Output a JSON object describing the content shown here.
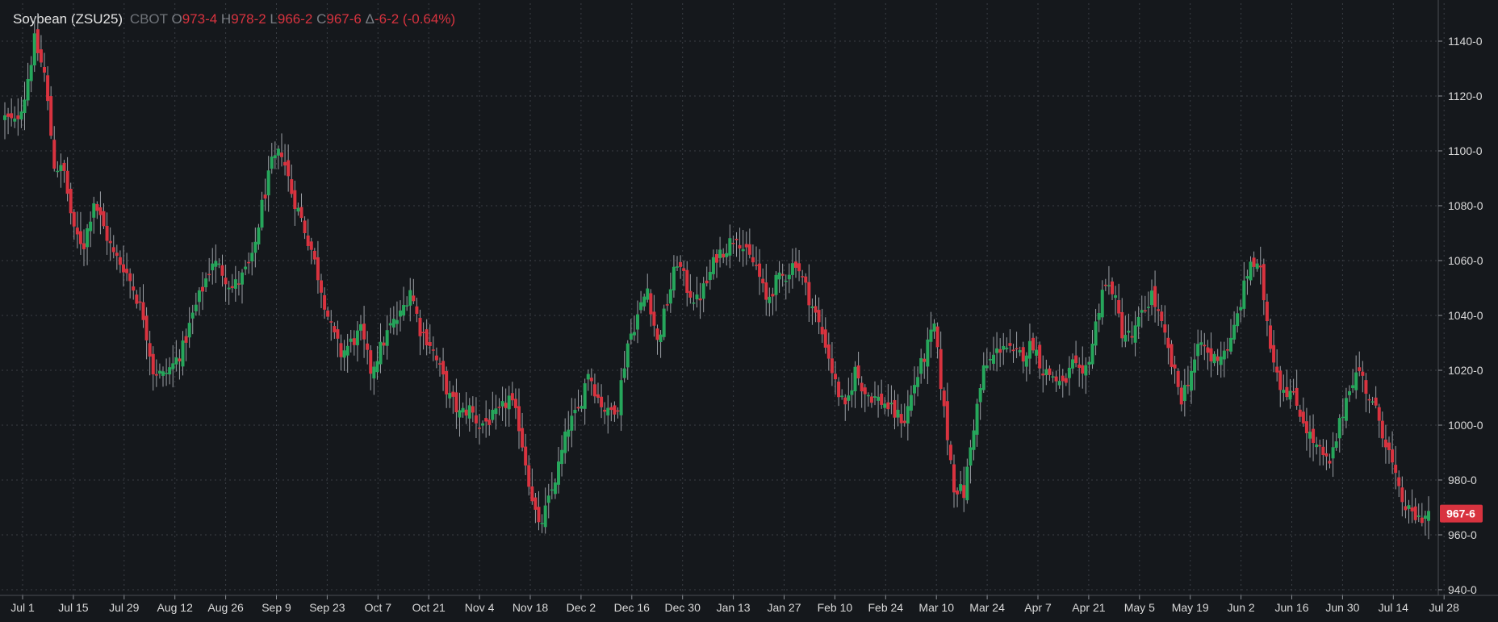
{
  "header": {
    "symbol": "Soybean (ZSU25)",
    "exchange": "CBOT",
    "open_label": "O",
    "open": "973-4",
    "high_label": "H",
    "high": "978-2",
    "low_label": "L",
    "low": "966-2",
    "close_label": "C",
    "close": "967-6",
    "change_label": "Δ",
    "change": "-6-2 (-0.64%)"
  },
  "colors": {
    "background": "#15181c",
    "up": "#26a65b",
    "down": "#d8333f",
    "grid": "#3a3e44",
    "axis_text": "#d9d9d9",
    "price_tag": "#d8333f"
  },
  "last_price_label": "967-6",
  "chart_data": {
    "type": "candlestick",
    "title": "Soybean (ZSU25)",
    "ylim": [
      940,
      1150
    ],
    "y_ticks": [
      940,
      960,
      980,
      1000,
      1020,
      1040,
      1060,
      1080,
      1100,
      1120,
      1140
    ],
    "y_tick_labels": [
      "940-0",
      "960-0",
      "980-0",
      "1000-0",
      "1020-0",
      "1040-0",
      "1060-0",
      "1080-0",
      "1100-0",
      "1120-0",
      "1140-0"
    ],
    "x_tick_labels": [
      "Jul 1",
      "Jul 15",
      "Jul 29",
      "Aug 12",
      "Aug 26",
      "Sep 9",
      "Sep 23",
      "Oct 7",
      "Oct 21",
      "Nov 4",
      "Nov 18",
      "Dec 2",
      "Dec 16",
      "Dec 30",
      "Jan 13",
      "Jan 27",
      "Feb 10",
      "Feb 24",
      "Mar 10",
      "Mar 24",
      "Apr 7",
      "Apr 21",
      "May 5",
      "May 19",
      "Jun 2",
      "Jun 16",
      "Jun 30",
      "Jul 14",
      "Jul 28"
    ],
    "grid": true,
    "close_path": [
      [
        0,
        1112
      ],
      [
        3,
        1110
      ],
      [
        6,
        1120
      ],
      [
        9,
        1140
      ],
      [
        12,
        1128
      ],
      [
        15,
        1095
      ],
      [
        18,
        1092
      ],
      [
        21,
        1070
      ],
      [
        24,
        1066
      ],
      [
        27,
        1082
      ],
      [
        30,
        1072
      ],
      [
        33,
        1062
      ],
      [
        36,
        1058
      ],
      [
        39,
        1050
      ],
      [
        42,
        1040
      ],
      [
        45,
        1020
      ],
      [
        48,
        1018
      ],
      [
        51,
        1022
      ],
      [
        54,
        1028
      ],
      [
        57,
        1040
      ],
      [
        60,
        1050
      ],
      [
        63,
        1060
      ],
      [
        66,
        1056
      ],
      [
        69,
        1050
      ],
      [
        72,
        1054
      ],
      [
        75,
        1060
      ],
      [
        78,
        1080
      ],
      [
        81,
        1095
      ],
      [
        84,
        1100
      ],
      [
        87,
        1085
      ],
      [
        90,
        1075
      ],
      [
        93,
        1064
      ],
      [
        96,
        1050
      ],
      [
        99,
        1035
      ],
      [
        102,
        1026
      ],
      [
        105,
        1030
      ],
      [
        108,
        1034
      ],
      [
        111,
        1020
      ],
      [
        114,
        1028
      ],
      [
        117,
        1036
      ],
      [
        120,
        1040
      ],
      [
        123,
        1050
      ],
      [
        126,
        1035
      ],
      [
        129,
        1030
      ],
      [
        132,
        1020
      ],
      [
        135,
        1010
      ],
      [
        138,
        1004
      ],
      [
        141,
        1006
      ],
      [
        144,
        1000
      ],
      [
        147,
        1002
      ],
      [
        150,
        1004
      ],
      [
        153,
        1010
      ],
      [
        156,
        1000
      ],
      [
        159,
        980
      ],
      [
        162,
        962
      ],
      [
        165,
        972
      ],
      [
        168,
        985
      ],
      [
        171,
        1000
      ],
      [
        174,
        1005
      ],
      [
        177,
        1020
      ],
      [
        180,
        1010
      ],
      [
        183,
        1004
      ],
      [
        186,
        1008
      ],
      [
        189,
        1030
      ],
      [
        192,
        1040
      ],
      [
        195,
        1050
      ],
      [
        198,
        1030
      ],
      [
        201,
        1045
      ],
      [
        204,
        1060
      ],
      [
        207,
        1050
      ],
      [
        210,
        1045
      ],
      [
        213,
        1052
      ],
      [
        216,
        1062
      ],
      [
        219,
        1065
      ],
      [
        222,
        1070
      ],
      [
        225,
        1062
      ],
      [
        228,
        1058
      ],
      [
        231,
        1045
      ],
      [
        234,
        1052
      ],
      [
        237,
        1055
      ],
      [
        240,
        1060
      ],
      [
        243,
        1050
      ],
      [
        246,
        1040
      ],
      [
        249,
        1030
      ],
      [
        252,
        1015
      ],
      [
        255,
        1005
      ],
      [
        258,
        1020
      ],
      [
        261,
        1012
      ],
      [
        264,
        1010
      ],
      [
        267,
        1008
      ],
      [
        270,
        1004
      ],
      [
        273,
        1002
      ],
      [
        276,
        1015
      ],
      [
        279,
        1025
      ],
      [
        282,
        1036
      ],
      [
        285,
        1005
      ],
      [
        288,
        978
      ],
      [
        291,
        975
      ],
      [
        294,
        1000
      ],
      [
        297,
        1020
      ],
      [
        300,
        1025
      ],
      [
        303,
        1030
      ],
      [
        306,
        1025
      ],
      [
        309,
        1026
      ],
      [
        312,
        1030
      ],
      [
        315,
        1020
      ],
      [
        318,
        1018
      ],
      [
        321,
        1014
      ],
      [
        324,
        1022
      ],
      [
        327,
        1016
      ],
      [
        330,
        1030
      ],
      [
        333,
        1050
      ],
      [
        336,
        1050
      ],
      [
        339,
        1034
      ],
      [
        342,
        1032
      ],
      [
        345,
        1040
      ],
      [
        348,
        1048
      ],
      [
        351,
        1036
      ],
      [
        354,
        1022
      ],
      [
        357,
        1010
      ],
      [
        360,
        1020
      ],
      [
        363,
        1030
      ],
      [
        366,
        1024
      ],
      [
        369,
        1026
      ],
      [
        372,
        1030
      ],
      [
        375,
        1045
      ],
      [
        378,
        1060
      ],
      [
        381,
        1055
      ],
      [
        384,
        1030
      ],
      [
        387,
        1015
      ],
      [
        390,
        1012
      ],
      [
        393,
        1005
      ],
      [
        396,
        996
      ],
      [
        399,
        990
      ],
      [
        402,
        985
      ],
      [
        405,
        1000
      ],
      [
        408,
        1015
      ],
      [
        411,
        1020
      ],
      [
        414,
        1010
      ],
      [
        417,
        1002
      ],
      [
        420,
        990
      ],
      [
        423,
        975
      ],
      [
        426,
        968
      ],
      [
        429,
        966
      ],
      [
        432,
        968
      ]
    ]
  }
}
